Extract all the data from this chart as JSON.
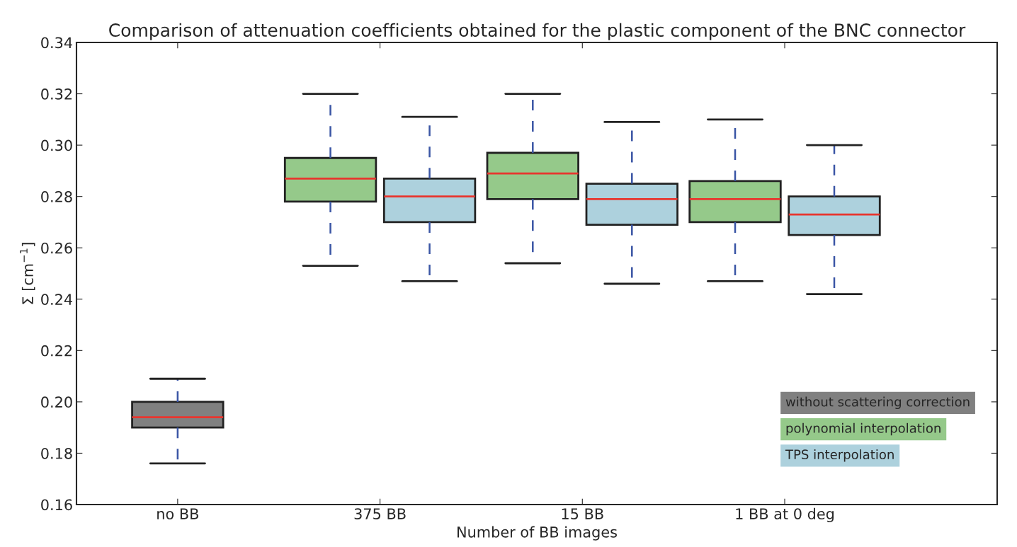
{
  "chart_data": {
    "type": "box",
    "title": "Comparison of attenuation coefficients obtained for the plastic component of the BNC connector",
    "xlabel": "Number of BB images",
    "ylabel": "Σ [cm$^{−1}$]",
    "categories": [
      "no BB",
      "375 BB",
      "15 BB",
      "1 BB at 0 deg"
    ],
    "series": [
      {
        "name": "without scattering correction",
        "color": "#808080",
        "boxes": [
          {
            "low": 0.176,
            "q1": 0.19,
            "median": 0.194,
            "q3": 0.2,
            "high": 0.209
          },
          null,
          null,
          null
        ]
      },
      {
        "name": "polynomial interpolation",
        "color": "#95c98a",
        "boxes": [
          null,
          {
            "low": 0.253,
            "q1": 0.278,
            "median": 0.287,
            "q3": 0.295,
            "high": 0.32
          },
          {
            "low": 0.254,
            "q1": 0.279,
            "median": 0.289,
            "q3": 0.297,
            "high": 0.32
          },
          {
            "low": 0.247,
            "q1": 0.27,
            "median": 0.279,
            "q3": 0.286,
            "high": 0.31
          }
        ]
      },
      {
        "name": "TPS interpolation",
        "color": "#add1dd",
        "boxes": [
          null,
          {
            "low": 0.247,
            "q1": 0.27,
            "median": 0.28,
            "q3": 0.287,
            "high": 0.311
          },
          {
            "low": 0.246,
            "q1": 0.269,
            "median": 0.279,
            "q3": 0.285,
            "high": 0.309
          },
          {
            "low": 0.242,
            "q1": 0.265,
            "median": 0.273,
            "q3": 0.28,
            "high": 0.3
          }
        ]
      }
    ],
    "ylim": [
      0.16,
      0.34
    ],
    "yticks": [
      {
        "value": 0.16,
        "label": "0.16"
      },
      {
        "value": 0.18,
        "label": "0.18"
      },
      {
        "value": 0.2,
        "label": "0.20"
      },
      {
        "value": 0.22,
        "label": "0.22"
      },
      {
        "value": 0.24,
        "label": "0.24"
      },
      {
        "value": 0.26,
        "label": "0.26"
      },
      {
        "value": 0.28,
        "label": "0.28"
      },
      {
        "value": 0.3,
        "label": "0.30"
      },
      {
        "value": 0.32,
        "label": "0.32"
      },
      {
        "value": 0.34,
        "label": "0.34"
      }
    ],
    "line_style": "dashed",
    "legend": "bottom right",
    "grid": false
  }
}
